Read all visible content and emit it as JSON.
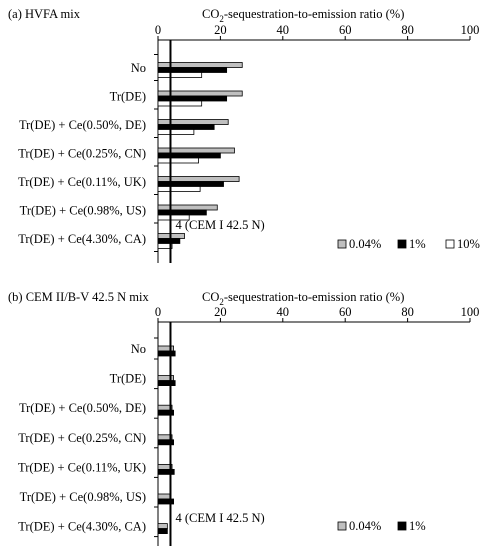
{
  "chart_data": [
    {
      "type": "bar",
      "orientation": "horizontal",
      "panel_label": "(a)  HVFA mix",
      "axis_title": {
        "pre": "CO",
        "sub": "2",
        "post": "-sequestration-to-emission ratio (%)"
      },
      "ticks": [
        "0",
        "20",
        "40",
        "60",
        "80",
        "100"
      ],
      "xlim": [
        0,
        100
      ],
      "categories": [
        "No",
        "Tr(DE)",
        "Tr(DE) + Ce(0.50%, DE)",
        "Tr(DE) + Ce(0.25%, CN)",
        "Tr(DE) + Ce(0.11%, UK)",
        "Tr(DE) + Ce(0.98%, US)",
        "Tr(DE) + Ce(4.30%, CA)"
      ],
      "series": [
        {
          "name": "0.04%",
          "color": "#bfbfbf",
          "values": [
            27,
            27,
            22.5,
            24.5,
            26,
            19,
            8.5
          ]
        },
        {
          "name": "1%",
          "color": "#000000",
          "values": [
            22,
            22,
            18,
            20,
            21,
            15.5,
            7
          ]
        },
        {
          "name": "10%",
          "color": "#ffffff",
          "values": [
            14,
            14,
            11.5,
            13,
            13.5,
            10,
            4.5
          ]
        }
      ],
      "reference_line": {
        "value": 4,
        "label": "4 (CEM I 42.5 N)"
      }
    },
    {
      "type": "bar",
      "orientation": "horizontal",
      "panel_label": "(b)  CEM II/B-V 42.5 N mix",
      "axis_title": {
        "pre": "CO",
        "sub": "2",
        "post": "-sequestration-to-emission ratio (%)"
      },
      "ticks": [
        "0",
        "20",
        "40",
        "60",
        "80",
        "100"
      ],
      "xlim": [
        0,
        100
      ],
      "categories": [
        "No",
        "Tr(DE)",
        "Tr(DE) + Ce(0.50%, DE)",
        "Tr(DE) + Ce(0.25%, CN)",
        "Tr(DE) + Ce(0.11%, UK)",
        "Tr(DE) + Ce(0.98%, US)",
        "Tr(DE) + Ce(4.30%, CA)"
      ],
      "series": [
        {
          "name": "0.04%",
          "color": "#bfbfbf",
          "values": [
            5,
            5,
            4.5,
            4.5,
            4.5,
            3.8,
            3
          ]
        },
        {
          "name": "1%",
          "color": "#000000",
          "values": [
            5.5,
            5.5,
            5,
            5,
            5.2,
            5,
            3
          ]
        }
      ],
      "reference_line": {
        "value": 4,
        "label": "4 (CEM I 42.5 N)"
      }
    }
  ]
}
